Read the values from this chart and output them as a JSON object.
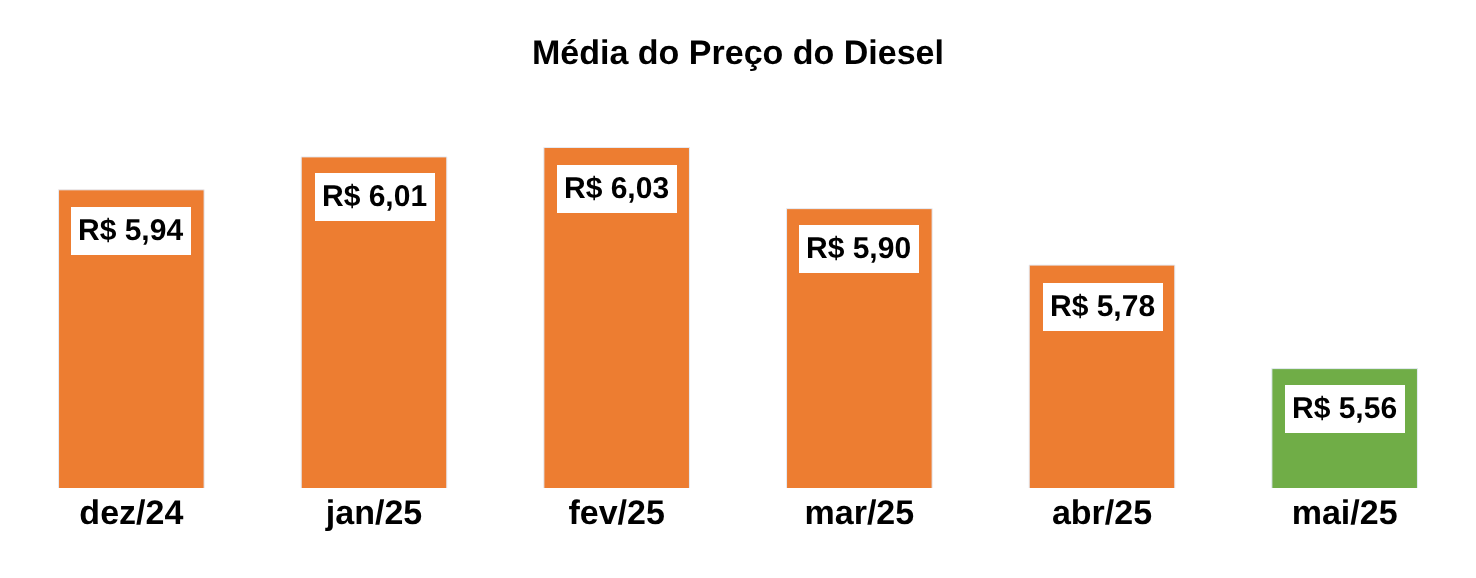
{
  "chart_data": {
    "type": "bar",
    "title": "Média do Preço do Diesel",
    "categories": [
      "dez/24",
      "jan/25",
      "fev/25",
      "mar/25",
      "abr/25",
      "mai/25"
    ],
    "values": [
      5.94,
      6.01,
      6.03,
      5.9,
      5.78,
      5.56
    ],
    "colors": [
      "#ed7d31",
      "#ed7d31",
      "#ed7d31",
      "#ed7d31",
      "#ed7d31",
      "#70ad47"
    ],
    "value_labels": [
      "R$ 5,94",
      "R$ 6,01",
      "R$ 6,03",
      "R$ 5,90",
      "R$ 5,78",
      "R$ 5,56"
    ],
    "tick_labels": "x"
  }
}
